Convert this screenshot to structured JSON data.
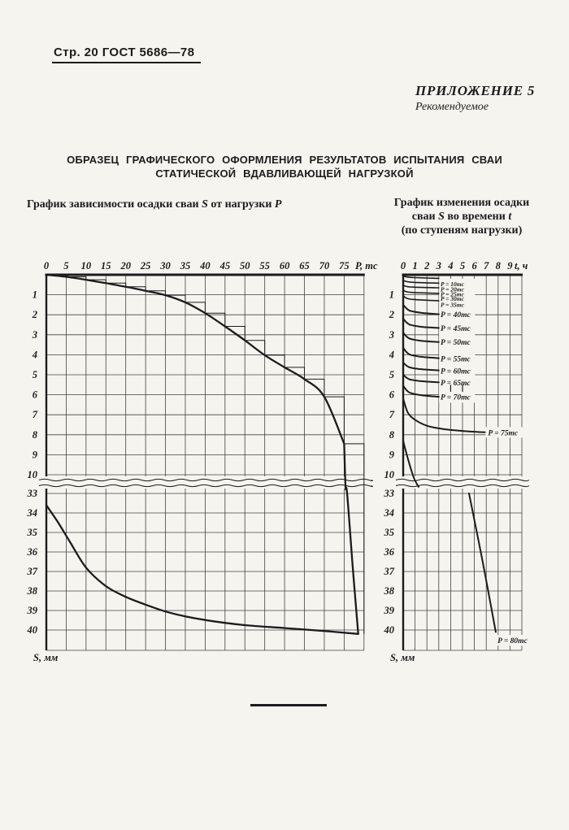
{
  "page": {
    "header": "Стр. 20 ГОСТ 5686—78",
    "appendix": {
      "title": "ПРИЛОЖЕНИЕ 5",
      "subtitle": "Рекомендуемое"
    },
    "title_line1": "ОБРАЗЕЦ ГРАФИЧЕСКОГО ОФОРМЛЕНИЯ РЕЗУЛЬТАТОВ ИСПЫТАНИЯ СВАИ",
    "title_line2": "СТАТИЧЕСКОЙ ВДАВЛИВАЮЩЕЙ НАГРУЗКОЙ",
    "left_caption_parts": [
      "График зависимости осадки сваи ",
      "S",
      " от нагрузки ",
      "P"
    ],
    "right_caption": {
      "line1": "График изменения осадки",
      "line2_parts": [
        "сваи ",
        "S",
        " во времени ",
        "t"
      ],
      "line3": "(по ступеням нагрузки)"
    },
    "ink_color": "#1c1c1c",
    "paper_color": "#f6f4ef"
  },
  "chart_data": [
    {
      "type": "line",
      "name": "load-settlement",
      "title": "График зависимости осадки сваи S от нагрузки P",
      "xlabel": "P, тс",
      "ylabel": "S, мм",
      "x_ticks": [
        0,
        5,
        10,
        15,
        20,
        25,
        30,
        35,
        40,
        45,
        50,
        55,
        60,
        65,
        70,
        75
      ],
      "x_range": [
        0,
        80
      ],
      "y_top_ticks": [
        1,
        2,
        3,
        4,
        5,
        6,
        7,
        8,
        9,
        10
      ],
      "y_bottom_ticks": [
        33,
        34,
        35,
        36,
        37,
        38,
        39,
        40
      ],
      "y_break_between": [
        10.6,
        33
      ],
      "grid": true,
      "series": [
        {
          "name": "loading-curve",
          "role": "smooth",
          "points": [
            [
              0,
              0
            ],
            [
              5,
              0.1
            ],
            [
              10,
              0.25
            ],
            [
              15,
              0.42
            ],
            [
              20,
              0.6
            ],
            [
              25,
              0.8
            ],
            [
              30,
              1.02
            ],
            [
              35,
              1.38
            ],
            [
              40,
              1.92
            ],
            [
              45,
              2.58
            ],
            [
              50,
              3.28
            ],
            [
              55,
              4.02
            ],
            [
              60,
              4.63
            ],
            [
              65,
              5.22
            ],
            [
              70,
              6.1
            ],
            [
              75,
              8.45
            ]
          ]
        },
        {
          "name": "failure-plunge",
          "role": "smooth",
          "points": [
            [
              75,
              8.45
            ],
            [
              75.35,
              10.6
            ],
            [
              75.75,
              33
            ],
            [
              77.1,
              36.6
            ],
            [
              78.55,
              40.2
            ]
          ]
        },
        {
          "name": "load-steps",
          "role": "staircase",
          "points": [
            [
              0,
              0
            ],
            [
              5,
              0.1
            ],
            [
              10,
              0.25
            ],
            [
              15,
              0.42
            ],
            [
              20,
              0.6
            ],
            [
              25,
              0.8
            ],
            [
              30,
              1.02
            ],
            [
              35,
              1.38
            ],
            [
              40,
              1.92
            ],
            [
              45,
              2.58
            ],
            [
              50,
              3.28
            ],
            [
              55,
              4.02
            ],
            [
              60,
              4.63
            ],
            [
              65,
              5.22
            ],
            [
              70,
              6.1
            ],
            [
              75,
              8.45
            ],
            [
              80,
              40.2
            ]
          ]
        },
        {
          "name": "unloading-curve",
          "role": "smooth",
          "points": [
            [
              78.55,
              40.2
            ],
            [
              70,
              40.05
            ],
            [
              60,
              39.9
            ],
            [
              50,
              39.75
            ],
            [
              42,
              39.55
            ],
            [
              35,
              39.3
            ],
            [
              30,
              39.05
            ],
            [
              25,
              38.7
            ],
            [
              20,
              38.3
            ],
            [
              15,
              37.75
            ],
            [
              10,
              36.8
            ],
            [
              6,
              35.5
            ],
            [
              3,
              34.5
            ],
            [
              0,
              33.6
            ]
          ]
        }
      ]
    },
    {
      "type": "line",
      "name": "settlement-time",
      "title": "График изменения осадки сваи S во времени t (по ступеням нагрузки)",
      "xlabel": "t, ч",
      "ylabel": "S, мм",
      "x_ticks": [
        0,
        1,
        2,
        3,
        4,
        5,
        6,
        7,
        8,
        9
      ],
      "x_range": [
        0,
        10
      ],
      "y_top_ticks": [
        1,
        2,
        3,
        4,
        5,
        6,
        7,
        8,
        9,
        10
      ],
      "y_bottom_ticks": [
        33,
        34,
        35,
        36,
        37,
        38,
        39,
        40
      ],
      "y_break_between": [
        10.6,
        33
      ],
      "grid": true,
      "label_box": {
        "x": [
          3.02,
          6.05
        ],
        "s": [
          0.2,
          6.4
        ]
      },
      "grid_stub_dashes": [
        {
          "x": 4,
          "s": [
            5.5,
            5.85
          ]
        },
        {
          "x": 5,
          "s": [
            5.5,
            5.85
          ]
        }
      ],
      "series": [
        {
          "label": "P = 10тс",
          "points": [
            [
              0,
              0.05
            ],
            [
              0.6,
              0.13
            ],
            [
              3,
              0.18
            ]
          ],
          "label_at": [
            3.15,
            0.45
          ]
        },
        {
          "label": "P = 20тс",
          "points": [
            [
              0,
              0.28
            ],
            [
              0.6,
              0.37
            ],
            [
              3,
              0.42
            ]
          ],
          "label_at": [
            3.15,
            0.72
          ]
        },
        {
          "label": "P = 25тс",
          "points": [
            [
              0,
              0.52
            ],
            [
              0.6,
              0.61
            ],
            [
              3,
              0.65
            ]
          ],
          "label_at": [
            3.15,
            0.95
          ]
        },
        {
          "label": "P = 30тс",
          "points": [
            [
              0,
              0.77
            ],
            [
              0.6,
              0.88
            ],
            [
              3,
              0.93
            ]
          ],
          "label_at": [
            3.15,
            1.18
          ]
        },
        {
          "label": "P = 35тс",
          "points": [
            [
              0,
              1.05
            ],
            [
              0.6,
              1.22
            ],
            [
              3,
              1.3
            ]
          ],
          "label_at": [
            3.15,
            1.48
          ]
        },
        {
          "label": "P = 40тс",
          "points": [
            [
              0,
              1.5
            ],
            [
              0.5,
              1.78
            ],
            [
              1.5,
              1.9
            ],
            [
              3,
              1.97
            ]
          ],
          "label_at": [
            3.15,
            2.0
          ]
        },
        {
          "label": "P = 45тс",
          "points": [
            [
              0,
              2.2
            ],
            [
              0.5,
              2.48
            ],
            [
              1.5,
              2.6
            ],
            [
              3,
              2.66
            ]
          ],
          "label_at": [
            3.15,
            2.68
          ]
        },
        {
          "label": "P = 50тс",
          "points": [
            [
              0,
              2.9
            ],
            [
              0.5,
              3.18
            ],
            [
              1.5,
              3.3
            ],
            [
              3,
              3.36
            ]
          ],
          "label_at": [
            3.15,
            3.38
          ]
        },
        {
          "label": "P = 55тс",
          "points": [
            [
              0,
              3.65
            ],
            [
              0.5,
              3.97
            ],
            [
              1.5,
              4.1
            ],
            [
              3,
              4.17
            ]
          ],
          "label_at": [
            3.15,
            4.2
          ]
        },
        {
          "label": "P = 60тс",
          "points": [
            [
              0,
              4.4
            ],
            [
              0.5,
              4.62
            ],
            [
              1.5,
              4.72
            ],
            [
              3,
              4.78
            ]
          ],
          "label_at": [
            3.15,
            4.82
          ]
        },
        {
          "label": "P = 65тс",
          "points": [
            [
              0,
              5.0
            ],
            [
              0.5,
              5.22
            ],
            [
              1.5,
              5.32
            ],
            [
              3,
              5.38
            ]
          ],
          "label_at": [
            3.15,
            5.4
          ]
        },
        {
          "label": "P = 70тс",
          "points": [
            [
              0,
              5.55
            ],
            [
              0.5,
              5.88
            ],
            [
              1.5,
              6.02
            ],
            [
              3,
              6.1
            ]
          ],
          "label_at": [
            3.15,
            6.12
          ]
        },
        {
          "label": "P = 75тс",
          "points": [
            [
              0,
              6.2
            ],
            [
              0.4,
              6.9
            ],
            [
              1,
              7.25
            ],
            [
              2,
              7.55
            ],
            [
              3,
              7.68
            ],
            [
              4,
              7.76
            ],
            [
              5,
              7.81
            ],
            [
              6,
              7.85
            ],
            [
              7,
              7.88
            ]
          ],
          "label_at": [
            7.15,
            7.9
          ],
          "label_boxed": true
        },
        {
          "label": "P = 80тс",
          "points": [
            [
              0,
              8.3
            ],
            [
              0.4,
              9.2
            ],
            [
              0.9,
              10.15
            ],
            [
              1.3,
              10.95
            ]
          ],
          "label_at": null
        },
        {
          "label": "P = 80тс",
          "points": [
            [
              5.55,
              32.85
            ],
            [
              6.7,
              36.5
            ],
            [
              7.8,
              40.1
            ]
          ],
          "label_at": [
            7.95,
            40.55
          ],
          "label_boxed": true
        }
      ]
    }
  ]
}
